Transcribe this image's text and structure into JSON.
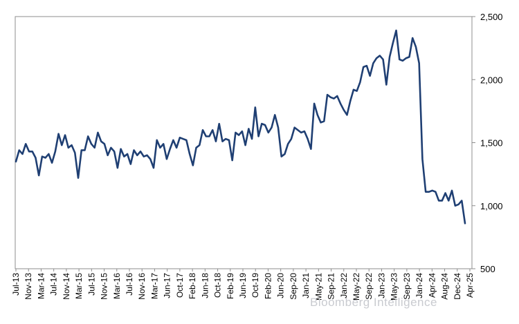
{
  "chart_data": {
    "type": "line",
    "title": "",
    "xlabel": "",
    "ylabel": "",
    "ylim": [
      500,
      2500
    ],
    "yticks": [
      "2,500",
      "2,000",
      "1,500",
      "1,000",
      "500"
    ],
    "ytick_values": [
      2500,
      2000,
      1500,
      1000,
      500
    ],
    "y_axis_side": "right",
    "grid": false,
    "legend": "none",
    "line_color": "#1f3f73",
    "xtick_labels": [
      "Jul-13",
      "Nov-13",
      "Mar-14",
      "Jul-14",
      "Nov-14",
      "Mar-15",
      "Jul-15",
      "Nov-15",
      "Mar-16",
      "Jul-16",
      "Nov-16",
      "Mar-17",
      "Jun-17",
      "Oct-17",
      "Feb-18",
      "Jun-18",
      "Oct-18",
      "Feb-19",
      "Jun-19",
      "Oct-19",
      "Feb-20",
      "Jun-20",
      "Sep-20",
      "Jan-21",
      "May-21",
      "Sep-21",
      "Jan-22",
      "May-22",
      "Sep-22",
      "Jan-23",
      "May-23",
      "Sep-23",
      "Jan-24",
      "Apr-24",
      "Aug-24",
      "Dec-24",
      "Apr-25"
    ],
    "series": [
      {
        "values": [
          1350,
          1440,
          1410,
          1490,
          1430,
          1430,
          1380,
          1240,
          1390,
          1380,
          1410,
          1340,
          1430,
          1570,
          1480,
          1560,
          1460,
          1480,
          1420,
          1220,
          1440,
          1440,
          1550,
          1490,
          1460,
          1580,
          1510,
          1490,
          1400,
          1460,
          1430,
          1300,
          1450,
          1390,
          1410,
          1330,
          1440,
          1400,
          1430,
          1390,
          1400,
          1370,
          1300,
          1520,
          1460,
          1490,
          1370,
          1450,
          1520,
          1460,
          1540,
          1530,
          1520,
          1410,
          1320,
          1460,
          1480,
          1600,
          1550,
          1550,
          1600,
          1510,
          1650,
          1510,
          1530,
          1520,
          1360,
          1580,
          1560,
          1590,
          1480,
          1610,
          1530,
          1780,
          1550,
          1650,
          1640,
          1580,
          1620,
          1720,
          1620,
          1390,
          1410,
          1490,
          1530,
          1620,
          1600,
          1580,
          1590,
          1530,
          1450,
          1810,
          1720,
          1660,
          1670,
          1880,
          1860,
          1850,
          1870,
          1810,
          1760,
          1720,
          1830,
          1920,
          1910,
          1980,
          2100,
          2110,
          2030,
          2130,
          2170,
          2190,
          2160,
          1960,
          2180,
          2290,
          2390,
          2160,
          2150,
          2170,
          2180,
          2330,
          2260,
          2130,
          1370,
          1110,
          1110,
          1120,
          1110,
          1040,
          1040,
          1100,
          1040,
          1120,
          1000,
          1010,
          1040,
          860
        ]
      }
    ]
  },
  "watermark_text": "Bloomberg Intelligence"
}
